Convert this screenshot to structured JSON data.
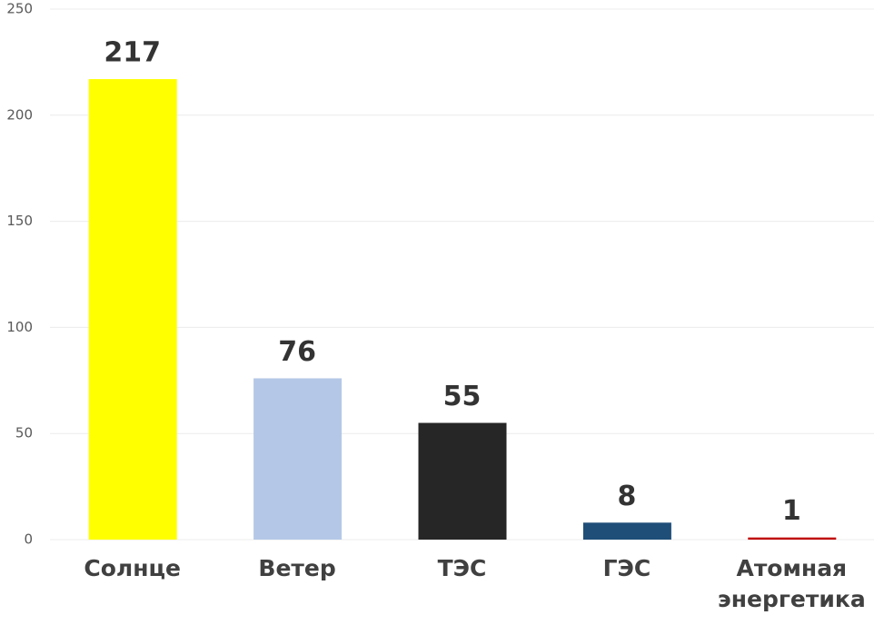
{
  "chart_data": {
    "type": "bar",
    "categories": [
      "Солнце",
      "Ветер",
      "ТЭС",
      "ГЭС",
      "Атомная энергетика"
    ],
    "values": [
      217,
      76,
      55,
      8,
      1
    ],
    "colors": [
      "#ffff00",
      "#b4c7e7",
      "#262626",
      "#1f4e79",
      "#c00000"
    ],
    "ylim": [
      0,
      250
    ],
    "yticks": [
      0,
      50,
      100,
      150,
      200,
      250
    ],
    "grid": true
  }
}
